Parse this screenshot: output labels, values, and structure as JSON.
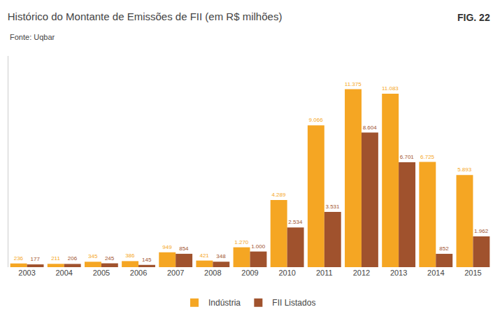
{
  "chart_data": {
    "type": "bar",
    "title": "Histórico do Montante de Emissões de FII (em R$ milhões)",
    "annotations": [
      "FIG. 22",
      "Fonte: Uqbar"
    ],
    "categories": [
      "2003",
      "2004",
      "2005",
      "2006",
      "2007",
      "2008",
      "2009",
      "2010",
      "2011",
      "2012",
      "2013",
      "2014",
      "2015"
    ],
    "series": [
      {
        "name": "Indústria",
        "color": "#F5A623",
        "values": [
          236,
          211,
          345,
          386,
          949,
          421,
          1270,
          4289,
          9066,
          11375,
          11083,
          6725,
          5893
        ],
        "value_labels": [
          "236",
          "211",
          "345",
          "386",
          "949",
          "421",
          "1.270",
          "4.289",
          "9.066",
          "11.375",
          "11.083",
          "6.725",
          "5.893"
        ]
      },
      {
        "name": "FII Listados",
        "color": "#A0522D",
        "values": [
          177,
          206,
          245,
          145,
          854,
          348,
          1000,
          2534,
          3531,
          8604,
          6701,
          852,
          1962
        ],
        "value_labels": [
          "177",
          "206",
          "245",
          "145",
          "854",
          "348",
          "1.000",
          "2.534",
          "3.531",
          "8.604",
          "6.701",
          "852",
          "1.962"
        ]
      }
    ],
    "ylim": [
      0,
      13500
    ],
    "data_labels": true,
    "tick_labels": "x",
    "grid": false,
    "legend": "bottom"
  }
}
